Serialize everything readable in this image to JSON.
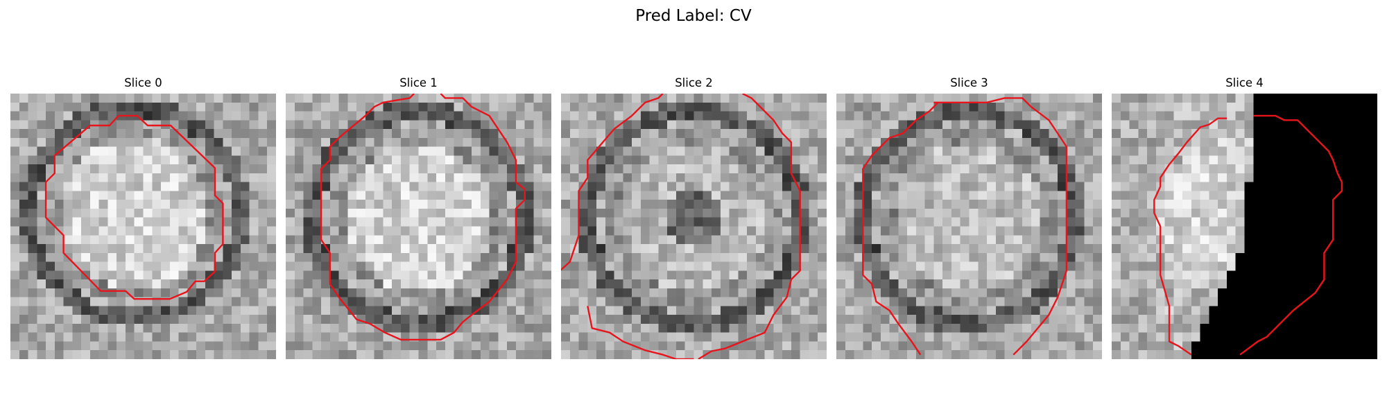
{
  "figure": {
    "title": "Pred Label: CV",
    "panels": [
      {
        "title": "Slice 0",
        "pattern": "bright-disc-dark-ring",
        "overlay": "red-contour"
      },
      {
        "title": "Slice 1",
        "pattern": "bright-disc-dark-ring",
        "overlay": "red-contour"
      },
      {
        "title": "Slice 2",
        "pattern": "dark-center-dark-ring",
        "overlay": "red-contour"
      },
      {
        "title": "Slice 3",
        "pattern": "gray-disc-dark-ring",
        "overlay": "red-contour"
      },
      {
        "title": "Slice 4",
        "pattern": "partial-black-right",
        "overlay": "red-contour"
      }
    ],
    "colors": {
      "contour": "#e8141c",
      "background": "#ffffff"
    }
  }
}
